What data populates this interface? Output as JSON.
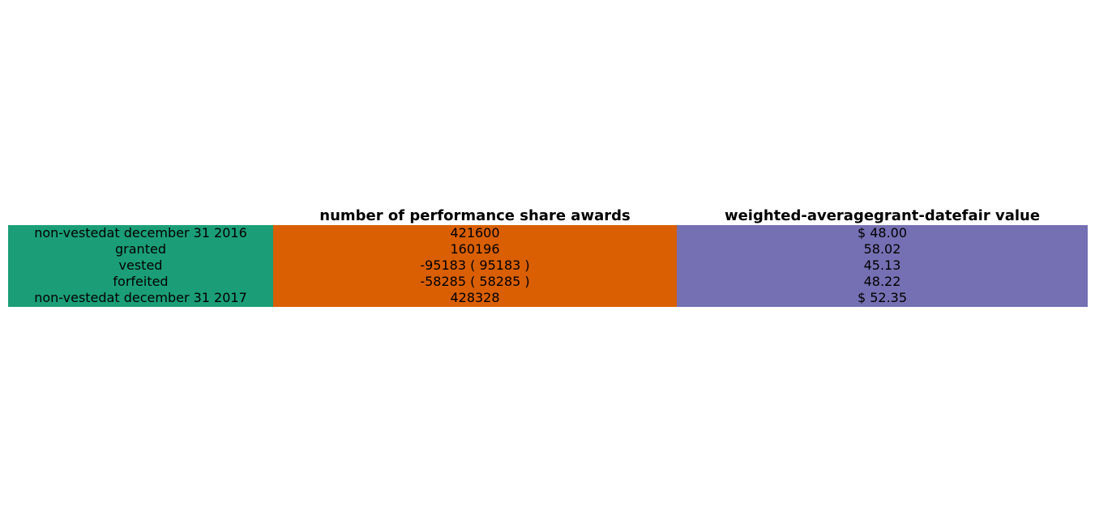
{
  "colors": {
    "row_label_column": "#1b9e77",
    "awards_column": "#d95f02",
    "fair_value_column": "#7570b3",
    "text": "#000000",
    "background": "#ffffff"
  },
  "chart_data": {
    "type": "table",
    "columns": [
      "",
      "number of performance share awards",
      "weighted-averagegrant-datefair value"
    ],
    "rows": [
      [
        "non-vestedat december 31 2016",
        "421600",
        "$ 48.00"
      ],
      [
        "granted",
        "160196",
        "58.02"
      ],
      [
        "vested",
        "-95183 ( 95183 )",
        "45.13"
      ],
      [
        "forfeited",
        "-58285 ( 58285 )",
        "48.22"
      ],
      [
        "non-vestedat december 31 2017",
        "428328",
        "$ 52.35"
      ]
    ]
  }
}
